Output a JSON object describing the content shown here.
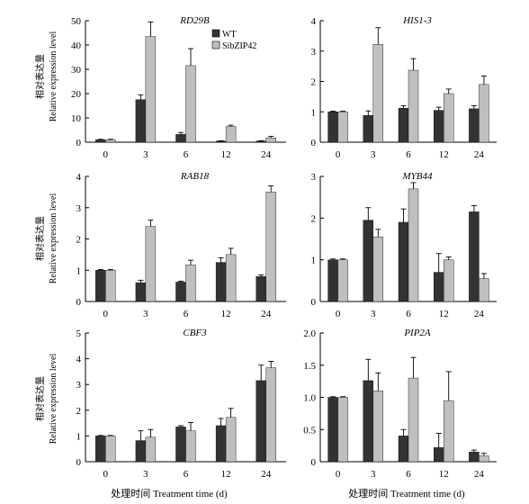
{
  "figure": {
    "ylabel_cn": "相对表达量",
    "ylabel_en": "Relative expression level",
    "xlabel": "处理时间 Treatment time (d)"
  },
  "legend": [
    {
      "name": "WT",
      "color": "#333333"
    },
    {
      "name": "SibZIP42",
      "color": "#bfbfbf"
    }
  ],
  "chart_data": [
    {
      "type": "bar",
      "title": "RD29B",
      "categories": [
        "0",
        "3",
        "6",
        "12",
        "24"
      ],
      "ylim": [
        0,
        50
      ],
      "yticks": [
        0,
        10,
        20,
        30,
        40,
        50
      ],
      "series": [
        {
          "name": "WT",
          "values": [
            1,
            17.5,
            3.2,
            0.5,
            0.5
          ],
          "errors": [
            0.2,
            2.0,
            0.8,
            0.1,
            0.1
          ]
        },
        {
          "name": "SibZIP42",
          "values": [
            1,
            43.5,
            31.5,
            6.5,
            1.8
          ],
          "errors": [
            0.2,
            6.0,
            7.0,
            0.5,
            0.6
          ]
        }
      ]
    },
    {
      "type": "bar",
      "title": "HIS1-3",
      "categories": [
        "0",
        "3",
        "6",
        "12",
        "24"
      ],
      "ylim": [
        0,
        4
      ],
      "yticks": [
        0,
        1,
        2,
        3,
        4
      ],
      "series": [
        {
          "name": "WT",
          "values": [
            1.0,
            0.88,
            1.12,
            1.05,
            1.1
          ],
          "errors": [
            0.02,
            0.15,
            0.08,
            0.1,
            0.1
          ]
        },
        {
          "name": "SibZIP42",
          "values": [
            1.0,
            3.22,
            2.37,
            1.6,
            1.9
          ],
          "errors": [
            0.02,
            0.55,
            0.38,
            0.15,
            0.28
          ]
        }
      ]
    },
    {
      "type": "bar",
      "title": "RAB18",
      "categories": [
        "0",
        "3",
        "6",
        "12",
        "24"
      ],
      "ylim": [
        0,
        4
      ],
      "yticks": [
        0,
        1,
        2,
        3,
        4
      ],
      "series": [
        {
          "name": "WT",
          "values": [
            1.0,
            0.6,
            0.62,
            1.25,
            0.8
          ],
          "errors": [
            0.02,
            0.08,
            0.03,
            0.15,
            0.05
          ]
        },
        {
          "name": "SibZIP42",
          "values": [
            1.0,
            2.4,
            1.17,
            1.5,
            3.5
          ],
          "errors": [
            0.02,
            0.2,
            0.15,
            0.2,
            0.2
          ]
        }
      ]
    },
    {
      "type": "bar",
      "title": "MYB44",
      "categories": [
        "0",
        "3",
        "6",
        "12",
        "24"
      ],
      "ylim": [
        0,
        3
      ],
      "yticks": [
        0,
        1,
        2,
        3
      ],
      "series": [
        {
          "name": "WT",
          "values": [
            1.0,
            1.95,
            1.9,
            0.7,
            2.15
          ],
          "errors": [
            0.02,
            0.3,
            0.32,
            0.45,
            0.15
          ]
        },
        {
          "name": "SibZIP42",
          "values": [
            1.0,
            1.55,
            2.7,
            1.0,
            0.55
          ],
          "errors": [
            0.02,
            0.18,
            0.15,
            0.07,
            0.12
          ]
        }
      ]
    },
    {
      "type": "bar",
      "title": "CBF3",
      "categories": [
        "0",
        "3",
        "6",
        "12",
        "24"
      ],
      "ylim": [
        0,
        5
      ],
      "yticks": [
        0,
        1,
        2,
        3,
        4,
        5
      ],
      "series": [
        {
          "name": "WT",
          "values": [
            1.0,
            0.82,
            1.35,
            1.4,
            3.15
          ],
          "errors": [
            0.02,
            0.38,
            0.05,
            0.28,
            0.6
          ]
        },
        {
          "name": "SibZIP42",
          "values": [
            1.0,
            0.95,
            1.2,
            1.72,
            3.65
          ],
          "errors": [
            0.02,
            0.3,
            0.32,
            0.35,
            0.25
          ]
        }
      ]
    },
    {
      "type": "bar",
      "title": "PIP2A",
      "categories": [
        "0",
        "3",
        "6",
        "12",
        "24"
      ],
      "ylim": [
        0,
        2.0
      ],
      "yticks": [
        "0",
        "0.5",
        "1.0",
        "1.5",
        "2.0"
      ],
      "series": [
        {
          "name": "WT",
          "values": [
            1.0,
            1.26,
            0.4,
            0.22,
            0.15
          ],
          "errors": [
            0.01,
            0.33,
            0.1,
            0.22,
            0.03
          ]
        },
        {
          "name": "SibZIP42",
          "values": [
            1.0,
            1.1,
            1.3,
            0.95,
            0.09
          ],
          "errors": [
            0.01,
            0.28,
            0.32,
            0.45,
            0.04
          ]
        }
      ]
    }
  ]
}
